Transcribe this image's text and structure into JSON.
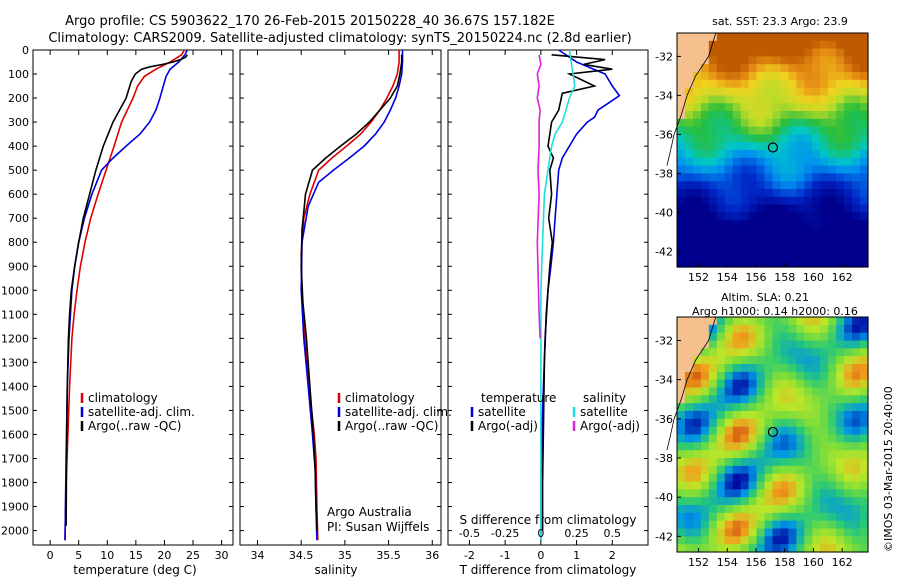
{
  "header": {
    "line1": "Argo profile: CS 5903622_170 26-Feb-2015 20150228_40 36.67S 157.182E",
    "line2": "Climatology: CARS2009. Satellite-adjusted climatology: synTS_20150224.nc (2.8d earlier)"
  },
  "credit": "©IMOS 03-Mar-2015 20:40:00",
  "colors": {
    "climatology": "#dd0000",
    "satellite": "#0000dd",
    "argo": "#000000",
    "salinity_satellite": "#22dddd",
    "salinity_argo": "#dd22dd",
    "land": "#f5c08e"
  },
  "chart_data": [
    {
      "type": "line",
      "panel": "temperature",
      "xlabel": "temperature (deg C)",
      "xlim": [
        -3,
        32
      ],
      "xticks": [
        0,
        5,
        10,
        15,
        20,
        25,
        30
      ],
      "ylim": [
        2060,
        0
      ],
      "yticks": [
        0,
        100,
        200,
        300,
        400,
        500,
        600,
        700,
        800,
        900,
        1000,
        1100,
        1200,
        1300,
        1400,
        1500,
        1600,
        1700,
        1800,
        1900,
        2000
      ],
      "legend_position": "bottom-center",
      "series": [
        {
          "name": "climatology",
          "color": "#dd0000",
          "x": [
            23.5,
            23.0,
            21.0,
            18.5,
            16.5,
            15.3,
            14.5,
            13.5,
            12.5,
            11.2,
            9.8,
            8.4,
            7.1,
            6.1,
            5.3,
            4.7,
            4.2,
            3.8,
            3.4,
            3.1,
            2.8,
            2.6
          ],
          "y": [
            0,
            20,
            50,
            80,
            110,
            150,
            200,
            250,
            300,
            400,
            500,
            600,
            700,
            800,
            900,
            1000,
            1100,
            1200,
            1400,
            1600,
            1800,
            2040
          ]
        },
        {
          "name": "satellite-adj. clim.",
          "color": "#0000dd",
          "x": [
            24.0,
            23.6,
            22.5,
            21.0,
            20.3,
            19.8,
            19.2,
            18.5,
            17.4,
            15.7,
            13.3,
            11.0,
            9.0,
            7.3,
            6.0,
            5.0,
            4.3,
            3.8,
            3.3,
            3.0,
            2.8,
            2.6
          ],
          "y": [
            0,
            20,
            50,
            80,
            110,
            150,
            200,
            250,
            300,
            350,
            400,
            450,
            500,
            600,
            700,
            800,
            900,
            1000,
            1200,
            1400,
            1700,
            2040
          ]
        },
        {
          "name": "Argo(..raw -QC)",
          "color": "#000000",
          "x": [
            24.0,
            23.7,
            22.8,
            21.5,
            19.7,
            17.5,
            16.0,
            14.9,
            14.2,
            13.3,
            11.0,
            9.3,
            8.0,
            6.9,
            5.8,
            5.0,
            4.3,
            3.7,
            3.4,
            3.2,
            3.0,
            2.9,
            2.8
          ],
          "y": [
            20,
            30,
            40,
            50,
            60,
            70,
            80,
            100,
            130,
            200,
            300,
            400,
            500,
            600,
            700,
            800,
            900,
            1000,
            1100,
            1200,
            1400,
            1600,
            1980
          ]
        }
      ]
    },
    {
      "type": "line",
      "panel": "salinity",
      "xlabel": "salinity",
      "xlim": [
        33.8,
        36.1
      ],
      "xticks": [
        34,
        34.5,
        35,
        35.5,
        36
      ],
      "ylim": [
        2060,
        0
      ],
      "legend_position": "bottom-center",
      "annotation": [
        "Argo Australia",
        "PI: Susan Wijffels"
      ],
      "series": [
        {
          "name": "climatology",
          "color": "#dd0000",
          "x": [
            35.62,
            35.62,
            35.6,
            35.55,
            35.48,
            35.4,
            35.3,
            35.18,
            35.02,
            34.85,
            34.7,
            34.6,
            34.53,
            34.5,
            34.51,
            34.54,
            34.58,
            34.62,
            34.65,
            34.67,
            34.68,
            34.69
          ],
          "y": [
            0,
            50,
            100,
            150,
            200,
            250,
            300,
            350,
            400,
            450,
            500,
            600,
            700,
            850,
            1000,
            1200,
            1350,
            1500,
            1600,
            1700,
            1900,
            2040
          ]
        },
        {
          "name": "satellite-adj. clim.",
          "color": "#0000dd",
          "x": [
            35.66,
            35.66,
            35.65,
            35.62,
            35.58,
            35.52,
            35.45,
            35.35,
            35.22,
            35.05,
            34.87,
            34.7,
            34.58,
            34.51,
            34.5,
            34.53,
            34.58,
            34.63,
            34.66,
            34.67,
            34.68
          ],
          "y": [
            0,
            50,
            100,
            150,
            200,
            250,
            300,
            350,
            400,
            450,
            500,
            550,
            650,
            800,
            1000,
            1200,
            1400,
            1600,
            1750,
            1900,
            2040
          ]
        },
        {
          "name": "Argo(..raw -QC)",
          "color": "#000000",
          "x": [
            35.65,
            35.65,
            35.63,
            35.6,
            35.52,
            35.4,
            35.28,
            35.13,
            34.95,
            34.78,
            34.63,
            34.55,
            34.51,
            34.5,
            34.52,
            34.56,
            34.6,
            34.64,
            34.66,
            34.67,
            34.68
          ],
          "y": [
            20,
            50,
            100,
            150,
            200,
            250,
            300,
            350,
            400,
            450,
            500,
            600,
            750,
            900,
            1050,
            1200,
            1400,
            1600,
            1750,
            1900,
            2000
          ]
        }
      ]
    },
    {
      "type": "line",
      "panel": "difference",
      "xlabel": "T difference from climatology",
      "xlabel_top": "S difference from climatology",
      "xlim": [
        -2.6,
        3.0
      ],
      "xticks": [
        -2,
        -1,
        0,
        1,
        2
      ],
      "xticks_top": [
        "-0.5",
        "-0.25",
        "0",
        "0.25",
        "0.5"
      ],
      "ylim": [
        2060,
        0
      ],
      "legend_position": "bottom",
      "legend_groups": [
        "temperature",
        "salinity"
      ],
      "series": [
        {
          "name": "satellite",
          "group": "temperature",
          "color": "#0000dd",
          "x": [
            0.5,
            1.0,
            1.8,
            2.0,
            2.2,
            1.9,
            1.6,
            1.5,
            1.3,
            1.0,
            0.8,
            0.6,
            0.5,
            0.45,
            0.4,
            0.35,
            0.28,
            0.2,
            0.12,
            0.05,
            0.0,
            0.0
          ],
          "y": [
            0,
            50,
            100,
            150,
            190,
            220,
            250,
            280,
            300,
            350,
            400,
            450,
            500,
            600,
            700,
            800,
            900,
            1000,
            1200,
            1500,
            1800,
            2040
          ]
        },
        {
          "name": "Argo(-adj)",
          "group": "temperature",
          "color": "#000000",
          "x": [
            0.3,
            1.8,
            1.2,
            2.0,
            0.8,
            1.5,
            0.6,
            0.5,
            0.3,
            0.2,
            0.35,
            0.25,
            0.3,
            0.22,
            0.32,
            0.25,
            0.2,
            0.15,
            0.1,
            0.08,
            0.05,
            0.05
          ],
          "y": [
            20,
            40,
            60,
            80,
            100,
            150,
            180,
            250,
            300,
            400,
            450,
            500,
            600,
            700,
            800,
            900,
            1000,
            1100,
            1300,
            1500,
            1800,
            2000
          ]
        },
        {
          "name": "satellite",
          "group": "salinity",
          "color": "#22dddd",
          "x": [
            0.8,
            0.85,
            0.9,
            0.95,
            0.8,
            0.7,
            0.6,
            0.4,
            0.3,
            0.2,
            0.1,
            0.05,
            0.0,
            0.0,
            0.0
          ],
          "y": [
            0,
            50,
            100,
            150,
            200,
            250,
            300,
            350,
            400,
            500,
            600,
            800,
            1000,
            1500,
            2040
          ]
        },
        {
          "name": "Argo(-adj)",
          "group": "salinity",
          "color": "#dd22dd",
          "x": [
            -0.05,
            0.0,
            -0.1,
            -0.05,
            -0.1,
            -0.02,
            -0.05,
            -0.05,
            -0.08,
            -0.05,
            -0.1,
            -0.05,
            -0.02
          ],
          "y": [
            20,
            60,
            100,
            150,
            200,
            250,
            300,
            400,
            500,
            600,
            800,
            1100,
            1200
          ]
        }
      ]
    },
    {
      "type": "heatmap",
      "panel": "sst-map",
      "title": "sat. SST: 23.3 Argo: 23.9",
      "xlim": [
        150.5,
        163.8
      ],
      "ylim": [
        -42.8,
        -30.8
      ],
      "xticks": [
        152,
        154,
        156,
        158,
        160,
        162
      ],
      "yticks": [
        -32,
        -34,
        -36,
        -38,
        -40,
        -42
      ],
      "marker": {
        "lon": 157.18,
        "lat": -36.67
      }
    },
    {
      "type": "heatmap",
      "panel": "sla-map",
      "title_line1": "Altim. SLA: 0.21",
      "title_line2": "Argo h1000: 0.14 h2000: 0.16",
      "xlim": [
        150.5,
        163.8
      ],
      "ylim": [
        -42.8,
        -30.8
      ],
      "xticks": [
        152,
        154,
        156,
        158,
        160,
        162
      ],
      "yticks": [
        -32,
        -34,
        -36,
        -38,
        -40,
        -42
      ],
      "marker": {
        "lon": 157.18,
        "lat": -36.67
      }
    }
  ]
}
